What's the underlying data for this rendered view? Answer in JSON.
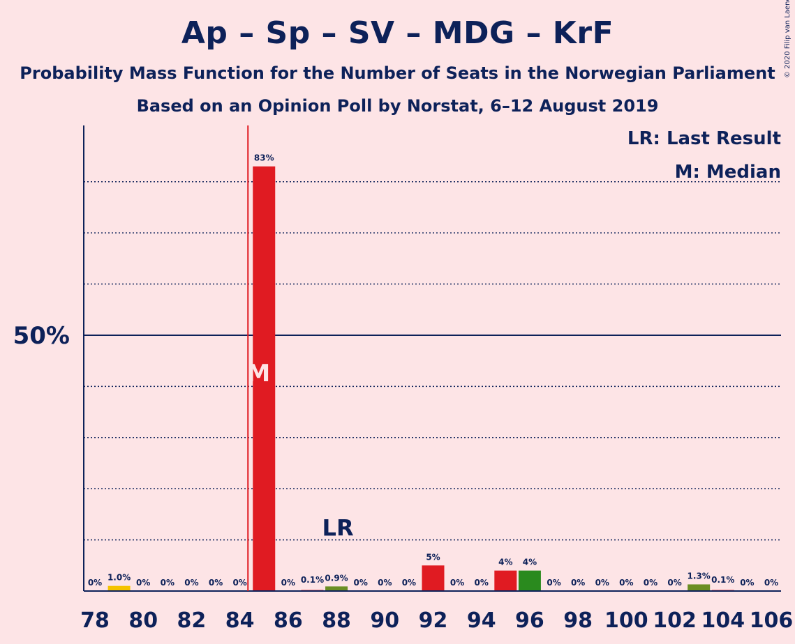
{
  "title": "Ap – Sp – SV – MDG – KrF",
  "subtitle": "Probability Mass Function for the Number of Seats in the Norwegian Parliament",
  "subtitle2": "Based on an Opinion Poll by Norstat, 6–12 August 2019",
  "copyright": "© 2020 Filip van Laenen",
  "legend": {
    "lr": "LR: Last Result",
    "m": "M: Median"
  },
  "markers": {
    "median_label": "M",
    "last_result_label": "LR"
  },
  "colors": {
    "background": "#fde4e6",
    "text": "#0d2159",
    "red": "#e01b22",
    "yellow": "#f5c300",
    "olive": "#6b8e23",
    "green": "#2a8a1e"
  },
  "chart_data": {
    "type": "bar",
    "x": [
      78,
      79,
      80,
      81,
      82,
      83,
      84,
      85,
      86,
      87,
      88,
      89,
      90,
      91,
      92,
      93,
      94,
      95,
      96,
      97,
      98,
      99,
      100,
      101,
      102,
      103,
      104,
      105,
      106
    ],
    "values": [
      0,
      1.0,
      0,
      0,
      0,
      0,
      0,
      83,
      0,
      0.1,
      0.9,
      0,
      0,
      0,
      5,
      0,
      0,
      4,
      4,
      0,
      0,
      0,
      0,
      0,
      0,
      1.3,
      0.1,
      0,
      0
    ],
    "labels": [
      "0%",
      "1.0%",
      "0%",
      "0%",
      "0%",
      "0%",
      "0%",
      "83%",
      "0%",
      "0.1%",
      "0.9%",
      "0%",
      "0%",
      "0%",
      "5%",
      "0%",
      "0%",
      "4%",
      "4%",
      "0%",
      "0%",
      "0%",
      "0%",
      "0%",
      "0%",
      "1.3%",
      "0.1%",
      "0%",
      "0%"
    ],
    "bar_colors": [
      "red",
      "yellow",
      "red",
      "red",
      "red",
      "red",
      "red",
      "red",
      "red",
      "red",
      "olive",
      "red",
      "red",
      "red",
      "red",
      "red",
      "red",
      "red",
      "green",
      "red",
      "red",
      "red",
      "red",
      "red",
      "red",
      "olive",
      "red",
      "red",
      "red"
    ],
    "x_ticks": [
      78,
      80,
      82,
      84,
      86,
      88,
      90,
      92,
      94,
      96,
      98,
      100,
      102,
      104,
      106
    ],
    "y_tick_label": "50%",
    "y_tick_value": 50,
    "ylim": [
      0,
      91
    ],
    "median": 85,
    "last_result": 88,
    "grid": true
  }
}
